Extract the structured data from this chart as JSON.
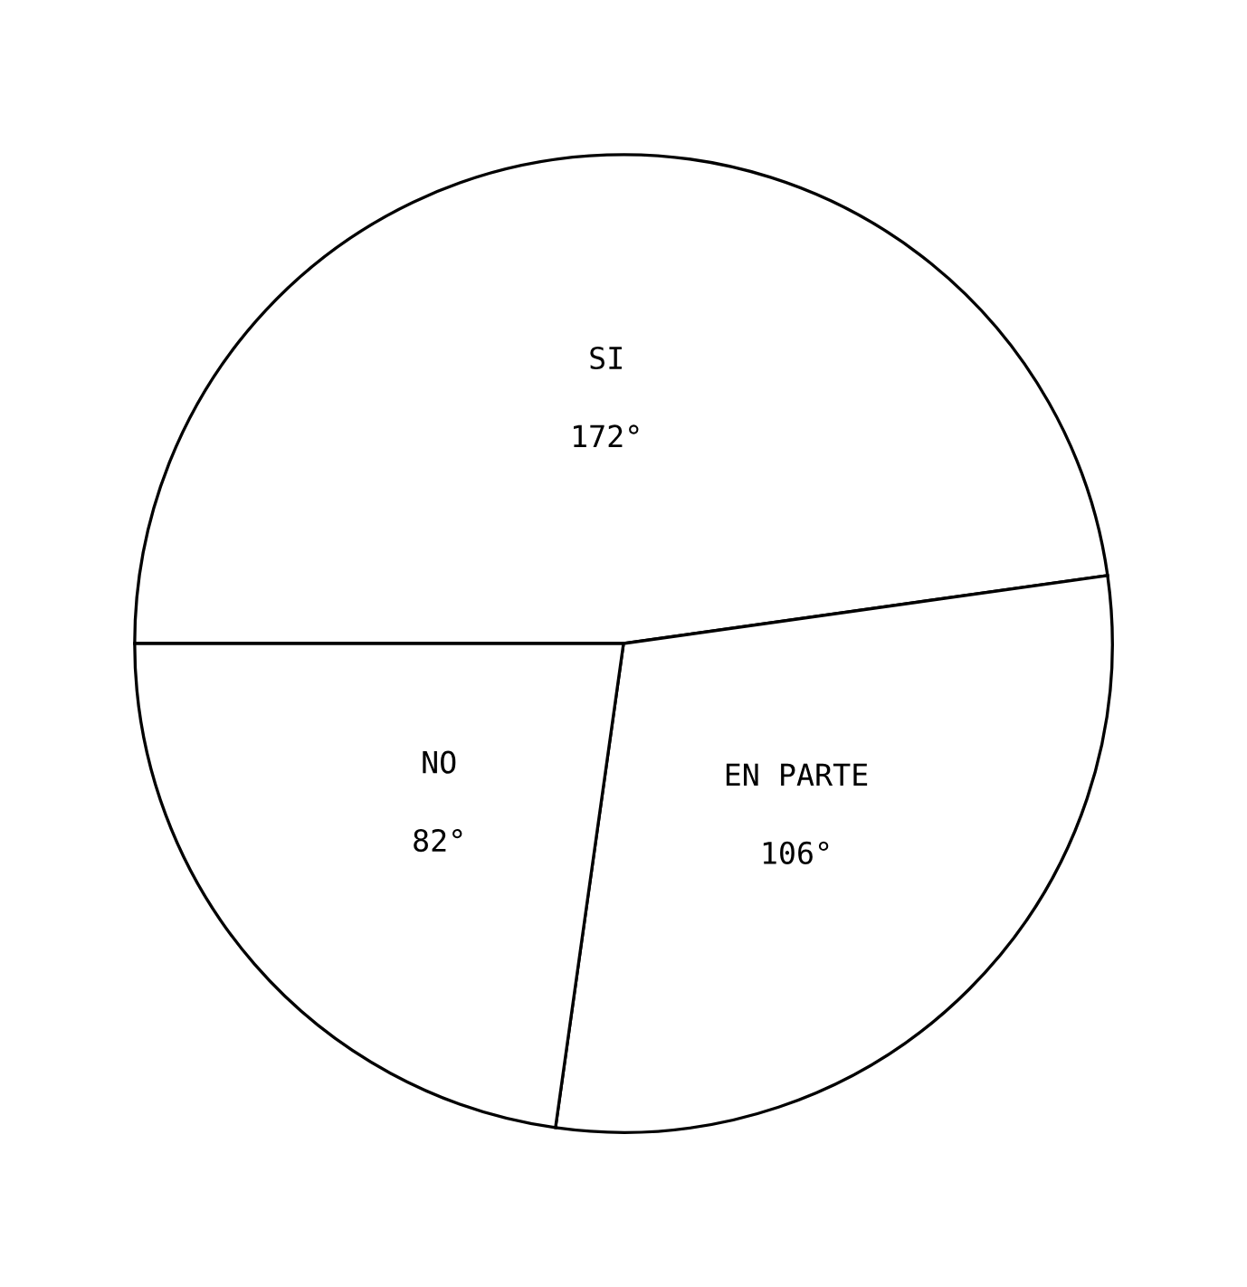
{
  "chart_data": {
    "type": "pie",
    "categories": [
      "SI",
      "EN PARTE",
      "NO"
    ],
    "values": [
      172,
      106,
      82
    ],
    "colors": [
      "#ffffff",
      "#ffffff",
      "#ffffff"
    ],
    "value_labels": [
      "172°",
      "106°",
      "82°"
    ]
  }
}
